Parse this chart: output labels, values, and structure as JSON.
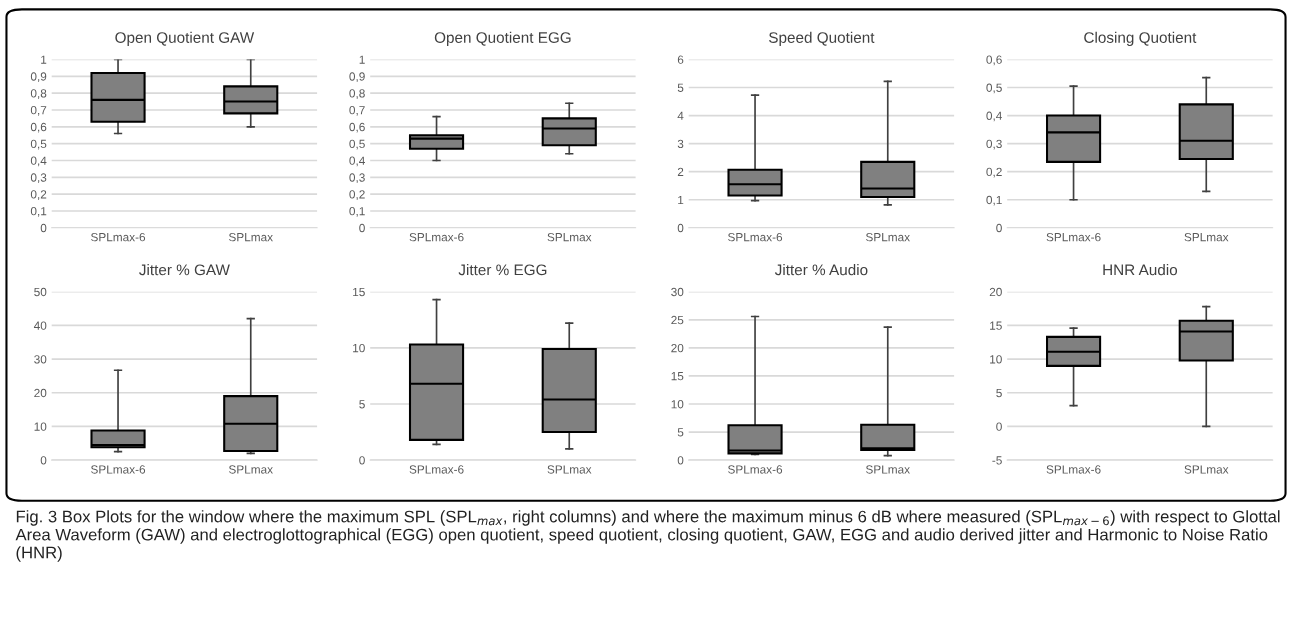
{
  "chart_data": [
    {
      "type": "box",
      "title": "Open Quotient GAW",
      "categories": [
        "SPLmax-6",
        "SPLmax"
      ],
      "color": "#808080",
      "ylim": [
        0,
        1
      ],
      "yticks": [
        0,
        {
          "value": 0.1,
          "label": "0,1"
        },
        {
          "value": 0.2,
          "label": "0,2"
        },
        {
          "value": 0.3,
          "label": "0,3"
        },
        {
          "value": 0.4,
          "label": "0,4"
        },
        {
          "value": 0.5,
          "label": "0,5"
        },
        {
          "value": 0.6,
          "label": "0,6"
        },
        {
          "value": 0.7,
          "label": "0,7"
        },
        {
          "value": 0.8,
          "label": "0,8"
        },
        {
          "value": 0.9,
          "label": "0,9"
        },
        1
      ],
      "grid": "y",
      "boxes": [
        {
          "low": 0.56,
          "q1": 0.63,
          "median": 0.76,
          "q3": 0.92,
          "high": 1.0
        },
        {
          "low": 0.6,
          "q1": 0.68,
          "median": 0.75,
          "q3": 0.84,
          "high": 1.0
        }
      ],
      "annotations": [
        "Fig. 3 Box Plots for the window where the maximum SPL (SPL$_{max}$, right columns) and where the maximum minus 6 dB where measured (SPL$_{max−6}$) with respect to Glottal Area Waveform (GAW) and electroglottographical (EGG) open quotient, speed quotient, closing quotient, GAW, EGG and audio derived jitter and Harmonic to Noise Ratio (HNR)"
      ]
    },
    {
      "type": "box",
      "title": "Open Quotient EGG",
      "categories": [
        "SPLmax-6",
        "SPLmax"
      ],
      "color": "#808080",
      "ylim": [
        0,
        1
      ],
      "yticks": [
        0,
        {
          "value": 0.1,
          "label": "0,1"
        },
        {
          "value": 0.2,
          "label": "0,2"
        },
        {
          "value": 0.3,
          "label": "0,3"
        },
        {
          "value": 0.4,
          "label": "0,4"
        },
        {
          "value": 0.5,
          "label": "0,5"
        },
        {
          "value": 0.6,
          "label": "0,6"
        },
        {
          "value": 0.7,
          "label": "0,7"
        },
        {
          "value": 0.8,
          "label": "0,8"
        },
        {
          "value": 0.9,
          "label": "0,9"
        },
        1
      ],
      "grid": "y",
      "boxes": [
        {
          "low": 0.4,
          "q1": 0.47,
          "median": 0.53,
          "q3": 0.55,
          "high": 0.66
        },
        {
          "low": 0.44,
          "q1": 0.49,
          "median": 0.59,
          "q3": 0.65,
          "high": 0.74
        }
      ]
    },
    {
      "type": "box",
      "title": "Speed Quotient",
      "categories": [
        "SPLmax-6",
        "SPLmax"
      ],
      "color": "#808080",
      "ylim": [
        0,
        6
      ],
      "yticks": [
        0,
        1,
        2,
        3,
        4,
        5,
        6
      ],
      "grid": "y",
      "boxes": [
        {
          "low": 0.97,
          "q1": 1.15,
          "median": 1.55,
          "q3": 2.07,
          "high": 4.73
        },
        {
          "low": 0.82,
          "q1": 1.1,
          "median": 1.4,
          "q3": 2.35,
          "high": 5.22
        }
      ]
    },
    {
      "type": "box",
      "title": "Closing Quotient",
      "categories": [
        "SPLmax-6",
        "SPLmax"
      ],
      "color": "#808080",
      "ylim": [
        0,
        0.6
      ],
      "yticks": [
        0,
        {
          "value": 0.1,
          "label": "0,1"
        },
        {
          "value": 0.2,
          "label": "0,2"
        },
        {
          "value": 0.3,
          "label": "0,3"
        },
        {
          "value": 0.4,
          "label": "0,4"
        },
        {
          "value": 0.5,
          "label": "0,5"
        },
        {
          "value": 0.6,
          "label": "0,6"
        }
      ],
      "grid": "y",
      "boxes": [
        {
          "low": 0.1,
          "q1": 0.235,
          "median": 0.34,
          "q3": 0.4,
          "high": 0.505
        },
        {
          "low": 0.13,
          "q1": 0.245,
          "median": 0.31,
          "q3": 0.44,
          "high": 0.535
        }
      ]
    },
    {
      "type": "box",
      "title": "Jitter % GAW",
      "categories": [
        "SPLmax-6",
        "SPLmax"
      ],
      "color": "#808080",
      "ylim": [
        0,
        50
      ],
      "yticks": [
        0,
        10,
        20,
        30,
        40,
        50
      ],
      "grid": "y",
      "boxes": [
        {
          "low": 2.5,
          "q1": 3.8,
          "median": 4.5,
          "q3": 8.8,
          "high": 26.7
        },
        {
          "low": 2,
          "q1": 2.7,
          "median": 10.8,
          "q3": 19,
          "high": 42
        }
      ]
    },
    {
      "type": "box",
      "title": "Jitter % EGG",
      "categories": [
        "SPLmax-6",
        "SPLmax"
      ],
      "color": "#808080",
      "ylim": [
        0,
        15
      ],
      "yticks": [
        0,
        5,
        10,
        15
      ],
      "grid": "y",
      "boxes": [
        {
          "low": 1.4,
          "q1": 1.8,
          "median": 6.8,
          "q3": 10.3,
          "high": 14.3
        },
        {
          "low": 1.0,
          "q1": 2.5,
          "median": 5.4,
          "q3": 9.9,
          "high": 12.2
        }
      ]
    },
    {
      "type": "box",
      "title": "Jitter % Audio",
      "categories": [
        "SPLmax-6",
        "SPLmax"
      ],
      "color": "#808080",
      "ylim": [
        0,
        30
      ],
      "yticks": [
        0,
        5,
        10,
        15,
        20,
        25,
        30
      ],
      "grid": "y",
      "boxes": [
        {
          "low": 1.0,
          "q1": 1.2,
          "median": 1.7,
          "q3": 6.2,
          "high": 25.6
        },
        {
          "low": 0.8,
          "q1": 1.8,
          "median": 2.1,
          "q3": 6.3,
          "high": 23.7
        }
      ]
    },
    {
      "type": "box",
      "title": "HNR Audio",
      "categories": [
        "SPLmax-6",
        "SPLmax"
      ],
      "color": "#808080",
      "ylim": [
        -5,
        20
      ],
      "yticks": [
        {
          "value": -5,
          "label": "-5"
        },
        0,
        5,
        10,
        15,
        20
      ],
      "grid": "y",
      "boxes": [
        {
          "low": 3.1,
          "q1": 9.0,
          "median": 11.1,
          "q3": 13.3,
          "high": 14.6
        },
        {
          "low": 0,
          "q1": 9.8,
          "median": 14.1,
          "q3": 15.7,
          "high": 17.8
        }
      ]
    }
  ]
}
